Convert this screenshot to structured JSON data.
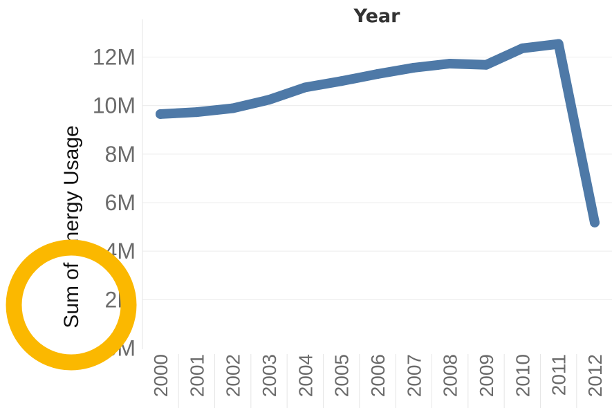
{
  "chart_data": {
    "type": "line",
    "title": "",
    "xlabel": "Year",
    "ylabel": "Sum of Energy Usage",
    "categories": [
      "2000",
      "2001",
      "2002",
      "2003",
      "2004",
      "2005",
      "2006",
      "2007",
      "2008",
      "2009",
      "2010",
      "2011",
      "2012"
    ],
    "series": [
      {
        "values": [
          9650000,
          9730000,
          9890000,
          10240000,
          10750000,
          11010000,
          11300000,
          11560000,
          11730000,
          11680000,
          12360000,
          12540000,
          5180000
        ],
        "color": "#4e79a7"
      }
    ],
    "ylim": [
      0,
      12700000
    ],
    "y_ticks": [
      {
        "value": 0,
        "label": "0M"
      },
      {
        "value": 2000000,
        "label": "2M"
      },
      {
        "value": 4000000,
        "label": "4M"
      },
      {
        "value": 6000000,
        "label": "6M"
      },
      {
        "value": 8000000,
        "label": "8M"
      },
      {
        "value": 10000000,
        "label": "10M"
      },
      {
        "value": 12000000,
        "label": "12M"
      }
    ],
    "grid": true,
    "legend": "none"
  },
  "annotation": {
    "shape": "circle",
    "color": "#fbb800"
  }
}
